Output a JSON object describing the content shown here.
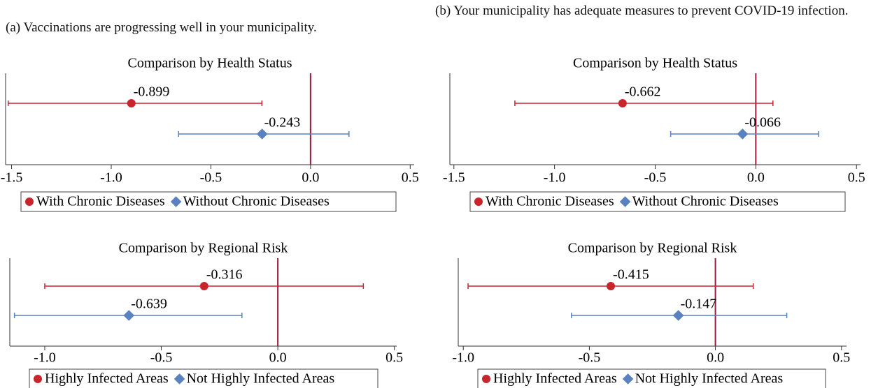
{
  "captions": [
    "(a) Vaccinations are progressing well in your municipality.",
    "(b) Your municipality has adequate measures to prevent COVID-19 infection."
  ],
  "chart_data": [
    {
      "type": "coefplot",
      "title": "Comparison by Health Status",
      "xlim": [
        -1.53,
        0.52
      ],
      "xticks": [
        -1.5,
        {
          "value": -1,
          "label": "-1.0"
        },
        -0.5,
        {
          "value": 0,
          "label": "0.0"
        },
        0.5
      ],
      "vline": 0,
      "series": [
        {
          "name": "With Chronic Diseases",
          "color": "#c8252c",
          "marker": "circle",
          "value": -0.899,
          "ci": [
            -1.517,
            -0.244
          ]
        },
        {
          "name": "Without Chronic Diseases",
          "color": "#5a82c0",
          "marker": "diamond",
          "value": -0.243,
          "ci": [
            -0.662,
            0.193
          ]
        }
      ]
    },
    {
      "type": "coefplot",
      "title": "Comparison by Health Status",
      "xlim": [
        -1.52,
        0.52
      ],
      "xticks": [
        -1.5,
        {
          "value": -1,
          "label": "-1.0"
        },
        -0.5,
        {
          "value": 0,
          "label": "0.0"
        },
        0.5
      ],
      "vline": 0,
      "series": [
        {
          "name": "With Chronic Diseases",
          "color": "#c8252c",
          "marker": "circle",
          "value": -0.662,
          "ci": [
            -1.197,
            0.085
          ]
        },
        {
          "name": "Without Chronic Diseases",
          "color": "#5a82c0",
          "marker": "diamond",
          "value": -0.066,
          "ci": [
            -0.423,
            0.312
          ]
        }
      ]
    },
    {
      "type": "coefplot",
      "title": "Comparison by Regional Risk",
      "xlim": [
        -1.15,
        0.51
      ],
      "xticks": [
        {
          "value": -1,
          "label": "-1.0"
        },
        -0.5,
        {
          "value": 0,
          "label": "0.0"
        },
        0.5
      ],
      "vline": 0,
      "series": [
        {
          "name": "Highly Infected Areas",
          "color": "#c8252c",
          "marker": "circle",
          "value": -0.316,
          "ci": [
            -1.0,
            0.367
          ]
        },
        {
          "name": "Not Highly Infected Areas",
          "color": "#5a82c0",
          "marker": "diamond",
          "value": -0.639,
          "ci": [
            -1.13,
            -0.154
          ]
        }
      ]
    },
    {
      "type": "coefplot",
      "title": "Comparison by Regional Risk",
      "xlim": [
        -1.02,
        0.52
      ],
      "xticks": [
        {
          "value": -1,
          "label": "-1.0"
        },
        -0.5,
        {
          "value": 0,
          "label": "0.0"
        },
        0.5
      ],
      "vline": 0,
      "series": [
        {
          "name": "Highly Infected Areas",
          "color": "#c8252c",
          "marker": "circle",
          "value": -0.415,
          "ci": [
            -0.981,
            0.15
          ]
        },
        {
          "name": "Not Highly Infected Areas",
          "color": "#5a82c0",
          "marker": "diamond",
          "value": -0.147,
          "ci": [
            -0.571,
            0.283
          ]
        }
      ]
    }
  ]
}
